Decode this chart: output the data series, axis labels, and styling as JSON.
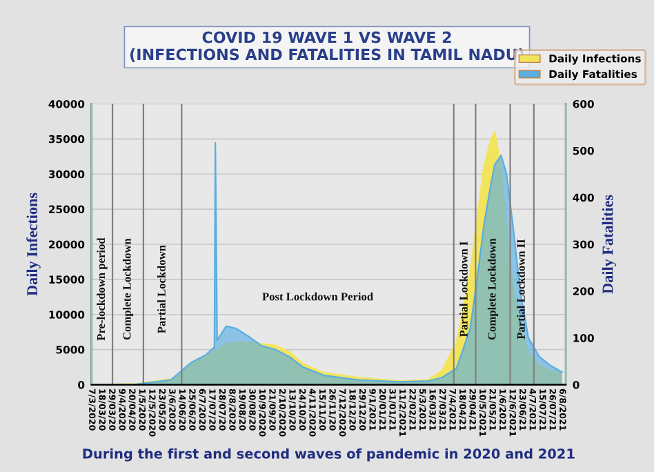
{
  "chart_data": {
    "type": "area",
    "title": "COVID 19 WAVE 1 VS WAVE 2\n(INFECTIONS AND FATALITIES IN TAMIL NADU)",
    "xlabel": "During the first and second waves of pandemic in 2020 and 2021",
    "ylabel": "Daily Infections",
    "y2label": "Daily Fatalities",
    "x": [
      "2020-03-07",
      "2020-04-25",
      "2020-06-02",
      "2020-06-14",
      "2020-06-25",
      "2020-07-10",
      "2020-07-20",
      "2020-07-21",
      "2020-07-23",
      "2020-08-02",
      "2020-08-13",
      "2020-08-25",
      "2020-09-10",
      "2020-09-25",
      "2020-10-10",
      "2020-10-25",
      "2020-11-17",
      "2020-12-26",
      "2021-02-09",
      "2021-03-12",
      "2021-03-27",
      "2021-04-12",
      "2021-04-27",
      "2021-05-05",
      "2021-05-12",
      "2021-05-20",
      "2021-05-24",
      "2021-05-31",
      "2021-06-06",
      "2021-06-13",
      "2021-06-21",
      "2021-06-30",
      "2021-07-12",
      "2021-07-25",
      "2021-08-06"
    ],
    "series": [
      {
        "name": "Daily Infections",
        "color": "#f2e45c",
        "values": [
          0,
          100,
          800,
          1500,
          3000,
          4000,
          4800,
          4900,
          5000,
          5800,
          6000,
          6000,
          5800,
          5600,
          4700,
          3000,
          1700,
          1000,
          500,
          700,
          2000,
          6000,
          16000,
          24000,
          31000,
          35000,
          36000,
          31000,
          22000,
          14000,
          8000,
          4500,
          2700,
          1900,
          1800
        ]
      },
      {
        "name": "Daily Fatalities",
        "color": "#5aaee0",
        "axis": "y2",
        "values": [
          0,
          1,
          10,
          30,
          48,
          63,
          80,
          517,
          95,
          125,
          120,
          105,
          83,
          75,
          60,
          38,
          20,
          10,
          6,
          8,
          15,
          35,
          120,
          230,
          340,
          430,
          470,
          490,
          450,
          340,
          200,
          100,
          60,
          40,
          27
        ]
      }
    ],
    "xlim": [
      "2020-03-07",
      "2021-08-10"
    ],
    "xticks": [
      {
        "value": "2020-03-07",
        "label": "7/3/2020"
      },
      {
        "value": "2020-03-18",
        "label": "18/03/20"
      },
      {
        "value": "2020-03-29",
        "label": "29/03/20"
      },
      {
        "value": "2020-04-09",
        "label": "9/4/2020"
      },
      {
        "value": "2020-04-20",
        "label": "20/04/20"
      },
      {
        "value": "2020-05-01",
        "label": "1/5/2020"
      },
      {
        "value": "2020-05-12",
        "label": "12/5/2020"
      },
      {
        "value": "2020-05-23",
        "label": "23/05/20"
      },
      {
        "value": "2020-06-03",
        "label": "3/6/2020"
      },
      {
        "value": "2020-06-14",
        "label": "14/06/20"
      },
      {
        "value": "2020-06-25",
        "label": "25/06/20"
      },
      {
        "value": "2020-07-06",
        "label": "6/7/2020"
      },
      {
        "value": "2020-07-17",
        "label": "17/07/20"
      },
      {
        "value": "2020-07-28",
        "label": "28/07/20"
      },
      {
        "value": "2020-08-08",
        "label": "8/8/2020"
      },
      {
        "value": "2020-08-19",
        "label": "19/08/20"
      },
      {
        "value": "2020-08-30",
        "label": "30/08/20"
      },
      {
        "value": "2020-09-10",
        "label": "10/9/2020"
      },
      {
        "value": "2020-09-21",
        "label": "21/09/20"
      },
      {
        "value": "2020-10-02",
        "label": "2/10/2020"
      },
      {
        "value": "2020-10-13",
        "label": "13/10/20"
      },
      {
        "value": "2020-10-24",
        "label": "24/10/20"
      },
      {
        "value": "2020-11-04",
        "label": "4/11/2020"
      },
      {
        "value": "2020-11-15",
        "label": "15/11/20"
      },
      {
        "value": "2020-11-26",
        "label": "26/11/20"
      },
      {
        "value": "2020-12-07",
        "label": "7/12/2020"
      },
      {
        "value": "2020-12-18",
        "label": "18/12/20"
      },
      {
        "value": "2020-12-29",
        "label": "29/12/20"
      },
      {
        "value": "2021-01-09",
        "label": "9/1/2021"
      },
      {
        "value": "2021-01-20",
        "label": "20/01/21"
      },
      {
        "value": "2021-01-31",
        "label": "31/01/21"
      },
      {
        "value": "2021-02-11",
        "label": "11/2/2021"
      },
      {
        "value": "2021-02-22",
        "label": "22/02/21"
      },
      {
        "value": "2021-03-05",
        "label": "5/3/2021"
      },
      {
        "value": "2021-03-16",
        "label": "16/03/21"
      },
      {
        "value": "2021-03-27",
        "label": "27/03/21"
      },
      {
        "value": "2021-04-07",
        "label": "7/4/2021"
      },
      {
        "value": "2021-04-18",
        "label": "18/04/21"
      },
      {
        "value": "2021-04-29",
        "label": "29/04/21"
      },
      {
        "value": "2021-05-10",
        "label": "10/5/2021"
      },
      {
        "value": "2021-05-21",
        "label": "21/05/21"
      },
      {
        "value": "2021-06-01",
        "label": "1/6/2021"
      },
      {
        "value": "2021-06-12",
        "label": "12/6/2021"
      },
      {
        "value": "2021-06-23",
        "label": "23/06/21"
      },
      {
        "value": "2021-07-04",
        "label": "4/7/2021"
      },
      {
        "value": "2021-07-15",
        "label": "15/07/21"
      },
      {
        "value": "2021-07-26",
        "label": "26/07/21"
      },
      {
        "value": "2021-08-06",
        "label": "6/8/2021"
      }
    ],
    "ylim": [
      0,
      40000
    ],
    "yticks": [
      0,
      5000,
      10000,
      15000,
      20000,
      25000,
      30000,
      35000,
      40000
    ],
    "y2lim": [
      0,
      600
    ],
    "y2ticks": [
      0,
      100,
      200,
      300,
      400,
      500,
      600
    ],
    "ref_lines": [
      {
        "axis": "x",
        "value": "2020-03-30",
        "color": "#808080"
      },
      {
        "axis": "x",
        "value": "2020-05-03",
        "color": "#808080"
      },
      {
        "axis": "x",
        "value": "2020-06-14",
        "color": "#808080"
      },
      {
        "axis": "x",
        "value": "2021-04-09",
        "color": "#808080"
      },
      {
        "axis": "x",
        "value": "2021-05-03",
        "color": "#808080"
      },
      {
        "axis": "x",
        "value": "2021-06-10",
        "color": "#808080"
      },
      {
        "axis": "x",
        "value": "2021-07-06",
        "color": "#808080"
      }
    ],
    "annotations": [
      "Pre-lockdown period",
      "Complete Lockdown",
      "Partial Lockdown",
      "Post Lockdown Period",
      "Partial Lockdown I",
      "Complete Lockdown",
      "Partial Lockdown II"
    ],
    "grid": "y",
    "legend": "top right"
  }
}
